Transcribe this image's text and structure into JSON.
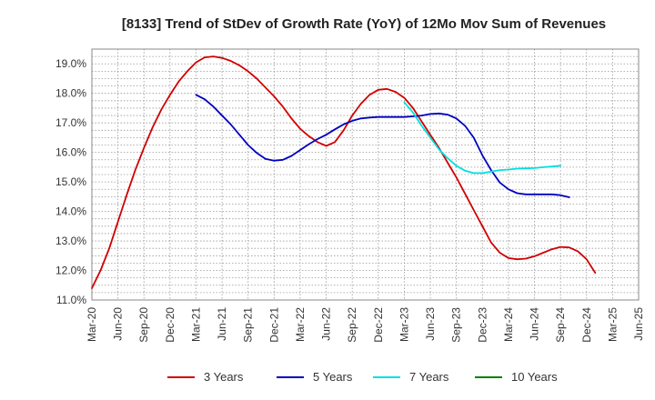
{
  "chart_data": {
    "type": "line",
    "title": "[8133]  Trend of StDev of Growth Rate (YoY) of 12Mo Mov Sum of Revenues",
    "xlabel": "",
    "ylabel": "",
    "x_tick_labels": [
      "Mar-20",
      "Jun-20",
      "Sep-20",
      "Dec-20",
      "Mar-21",
      "Jun-21",
      "Sep-21",
      "Dec-21",
      "Mar-22",
      "Jun-22",
      "Sep-22",
      "Dec-22",
      "Mar-23",
      "Jun-23",
      "Sep-23",
      "Dec-23",
      "Mar-24",
      "Jun-24",
      "Sep-24",
      "Dec-24",
      "Mar-25",
      "Jun-25"
    ],
    "y_tick_labels": [
      "11.0%",
      "12.0%",
      "13.0%",
      "14.0%",
      "15.0%",
      "16.0%",
      "17.0%",
      "18.0%",
      "19.0%"
    ],
    "y_ticks": [
      11,
      12,
      13,
      14,
      15,
      16,
      17,
      18,
      19
    ],
    "ylim": [
      11.0,
      19.5
    ],
    "grid": true,
    "legend_position": "bottom",
    "series": [
      {
        "name": "3 Years",
        "color": "#d00000",
        "start_index": 0,
        "values": [
          11.4,
          12.0,
          12.75,
          13.65,
          14.55,
          15.4,
          16.15,
          16.85,
          17.45,
          17.95,
          18.4,
          18.75,
          19.05,
          19.22,
          19.25,
          19.2,
          19.1,
          18.95,
          18.75,
          18.5,
          18.2,
          17.9,
          17.55,
          17.15,
          16.8,
          16.55,
          16.35,
          16.22,
          16.35,
          16.75,
          17.25,
          17.65,
          17.95,
          18.12,
          18.15,
          18.05,
          17.85,
          17.5,
          17.05,
          16.6,
          16.15,
          15.65,
          15.15,
          14.6,
          14.05,
          13.5,
          12.95,
          12.6,
          12.42,
          12.38,
          12.4,
          12.48,
          12.6,
          12.72,
          12.8,
          12.78,
          12.65,
          12.38,
          11.92
        ]
      },
      {
        "name": "5 Years",
        "color": "#0000c0",
        "start_index": 12,
        "values": [
          17.95,
          17.8,
          17.55,
          17.25,
          16.95,
          16.6,
          16.25,
          15.98,
          15.78,
          15.72,
          15.75,
          15.88,
          16.08,
          16.28,
          16.45,
          16.6,
          16.78,
          16.95,
          17.07,
          17.15,
          17.18,
          17.2,
          17.2,
          17.2,
          17.2,
          17.22,
          17.25,
          17.3,
          17.32,
          17.28,
          17.15,
          16.9,
          16.5,
          15.9,
          15.4,
          14.98,
          14.75,
          14.62,
          14.58,
          14.58,
          14.58,
          14.58,
          14.55,
          14.48
        ]
      },
      {
        "name": "7 Years",
        "color": "#00e0e0",
        "start_index": 36,
        "values": [
          17.7,
          17.35,
          16.9,
          16.5,
          16.1,
          15.8,
          15.55,
          15.38,
          15.3,
          15.3,
          15.35,
          15.4,
          15.42,
          15.45,
          15.46,
          15.47,
          15.5,
          15.52,
          15.55
        ]
      },
      {
        "name": "10 Years",
        "color": "#008000",
        "start_index": 0,
        "values": []
      }
    ]
  }
}
